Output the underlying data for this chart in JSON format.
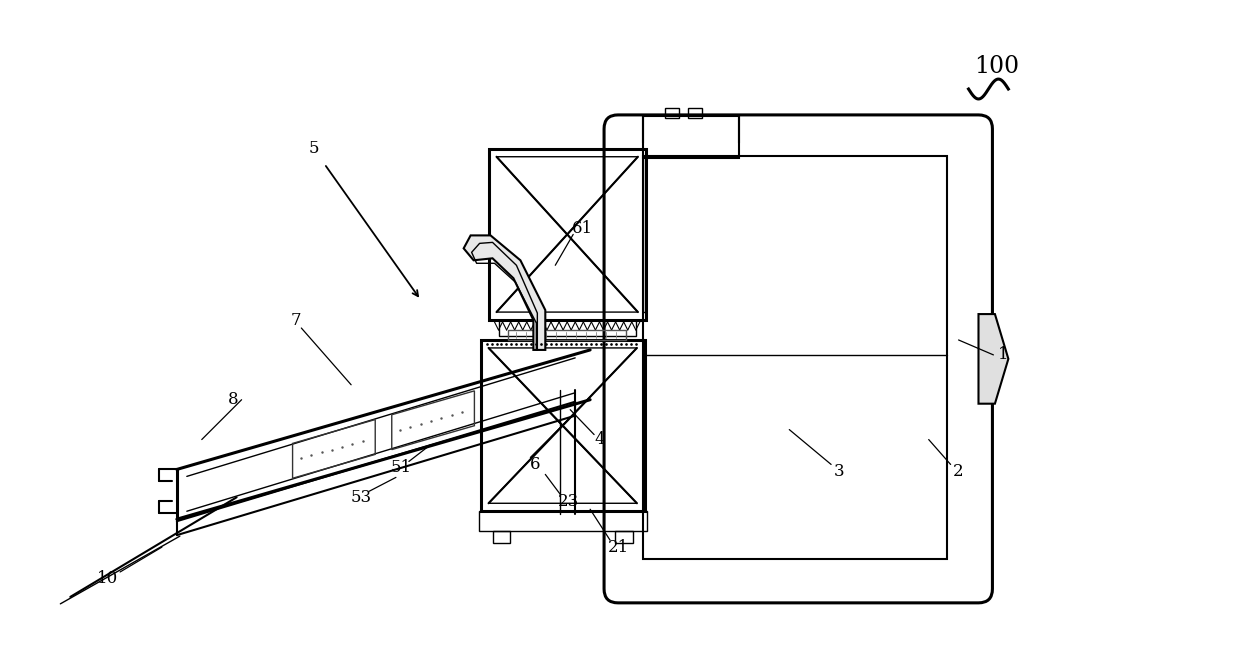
{
  "bg_color": "#ffffff",
  "fig_width": 12.39,
  "fig_height": 6.63,
  "dpi": 100
}
